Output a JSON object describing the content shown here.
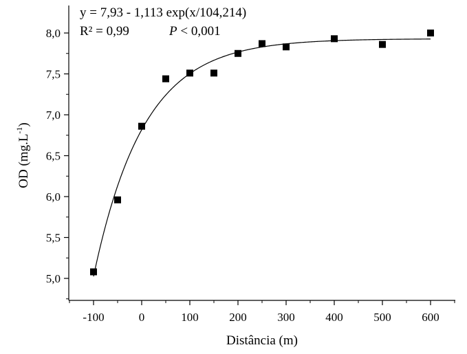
{
  "chart_data": {
    "type": "scatter",
    "xlabel": "Distância (m)",
    "ylabel": "OD (mg.L",
    "ylabel_sup": "-1",
    "ylabel_close": ")",
    "xlim": [
      -150,
      660
    ],
    "ylim": [
      4.65,
      8.1
    ],
    "x_ticks": [
      -100,
      0,
      100,
      200,
      300,
      400,
      500,
      600
    ],
    "x_tick_labels": [
      "-100",
      "0",
      "100",
      "200",
      "300",
      "400",
      "500",
      "600"
    ],
    "y_ticks": [
      5.0,
      5.5,
      6.0,
      6.5,
      7.0,
      7.5,
      8.0
    ],
    "y_tick_labels": [
      "5,0",
      "5,5",
      "6,0",
      "6,5",
      "7,0",
      "7,5",
      "8,0"
    ],
    "series": [
      {
        "marker": "square",
        "color": "#000000",
        "x": [
          -100,
          -50,
          0,
          50,
          100,
          150,
          200,
          250,
          300,
          400,
          500,
          600
        ],
        "y": [
          5.08,
          5.96,
          6.86,
          7.44,
          7.51,
          7.51,
          7.75,
          7.87,
          7.83,
          7.93,
          7.86,
          8.0
        ]
      }
    ],
    "fit": {
      "a": 7.93,
      "b": 1.113,
      "c": 104.214,
      "x_range": [
        -100,
        600
      ],
      "color": "#000000"
    },
    "annotations": {
      "equation": "y = 7,93 - 1,113 exp(x/104,214)",
      "r2": "R² = 0,99",
      "p_letter": "P",
      "p_rest": " < 0,001"
    },
    "grid": false
  }
}
